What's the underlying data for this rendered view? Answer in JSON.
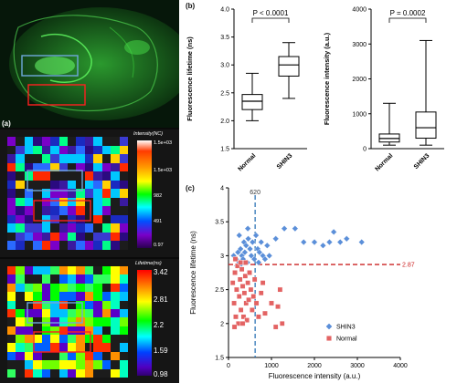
{
  "panels": {
    "a": {
      "letter": "(a)",
      "intensity_colorbar": {
        "title": "Intensity(NC)",
        "ticks": [
          "1.5e+03",
          "1.5e+03",
          "982",
          "491",
          "0.97"
        ]
      },
      "lifetime_colorbar": {
        "title": "Lifetime(ns)",
        "ticks": [
          "3.42",
          "2.81",
          "2.2",
          "1.59",
          "0.98"
        ]
      },
      "roi_colors": {
        "normal_box": "#6fa8dc",
        "tumor_box": "#ff2020"
      }
    },
    "b": {
      "letter": "(b)"
    },
    "c": {
      "letter": "(c)"
    }
  },
  "chart_data": [
    {
      "type": "boxplot",
      "ylabel": "Fluorescence lifetime (ns)",
      "categories": [
        "Normal",
        "SHIN3"
      ],
      "ylim": [
        1.5,
        4.0
      ],
      "yticks": [
        "1.5",
        "2.0",
        "2.5",
        "3.0",
        "3.5",
        "4.0"
      ],
      "boxes": [
        {
          "name": "Normal",
          "min": 2.0,
          "q1": 2.2,
          "median": 2.35,
          "q3": 2.47,
          "max": 2.85
        },
        {
          "name": "SHIN3",
          "min": 2.4,
          "q1": 2.8,
          "median": 3.0,
          "q3": 3.15,
          "max": 3.4
        }
      ],
      "annotation": "P < 0.0001"
    },
    {
      "type": "boxplot",
      "ylabel": "Fluorescence intensity (a.u.)",
      "categories": [
        "Normal",
        "SHIN3"
      ],
      "ylim": [
        0,
        4000
      ],
      "yticks": [
        "0",
        "1000",
        "2000",
        "3000",
        "4000"
      ],
      "boxes": [
        {
          "name": "Normal",
          "min": 100,
          "q1": 190,
          "median": 290,
          "q3": 420,
          "max": 1300
        },
        {
          "name": "SHIN3",
          "min": 100,
          "q1": 300,
          "median": 600,
          "q3": 1050,
          "max": 3100
        }
      ],
      "annotation": "P = 0.0002"
    },
    {
      "type": "scatter",
      "xlabel": "Fluorescence intensity (a.u.)",
      "ylabel": "Fluorescence lifetime (ns)",
      "xlim": [
        0,
        4000
      ],
      "ylim": [
        1.5,
        4.0
      ],
      "xticks": [
        "0",
        "1000",
        "2000",
        "3000",
        "4000"
      ],
      "yticks": [
        "1.5",
        "2",
        "2.5",
        "3",
        "3.5",
        "4"
      ],
      "vline": {
        "x": 620,
        "label": "620",
        "color": "#2e75b6"
      },
      "hline": {
        "y": 2.87,
        "label": "2.87",
        "color": "#cc2222"
      },
      "legend_position": "bottom-right",
      "series": [
        {
          "name": "SHIN3",
          "marker": "diamond",
          "color": "#5b8fd9",
          "points": [
            [
              120,
              3.0
            ],
            [
              180,
              2.95
            ],
            [
              220,
              3.05
            ],
            [
              250,
              2.9
            ],
            [
              280,
              3.1
            ],
            [
              310,
              3.0
            ],
            [
              340,
              2.95
            ],
            [
              360,
              3.2
            ],
            [
              380,
              3.05
            ],
            [
              410,
              3.15
            ],
            [
              440,
              2.9
            ],
            [
              460,
              3.25
            ],
            [
              500,
              3.1
            ],
            [
              530,
              3.0
            ],
            [
              560,
              3.2
            ],
            [
              600,
              2.95
            ],
            [
              640,
              3.3
            ],
            [
              680,
              3.1
            ],
            [
              720,
              3.05
            ],
            [
              760,
              3.2
            ],
            [
              800,
              3.0
            ],
            [
              850,
              2.95
            ],
            [
              900,
              3.15
            ],
            [
              950,
              3.0
            ],
            [
              1100,
              3.25
            ],
            [
              1300,
              3.4
            ],
            [
              1550,
              3.4
            ],
            [
              1750,
              3.2
            ],
            [
              2000,
              3.2
            ],
            [
              2200,
              3.15
            ],
            [
              2350,
              3.2
            ],
            [
              2450,
              3.35
            ],
            [
              2600,
              3.2
            ],
            [
              2750,
              3.25
            ],
            [
              3100,
              3.2
            ],
            [
              200,
              2.85
            ],
            [
              300,
              2.88
            ],
            [
              700,
              2.9
            ],
            [
              250,
              3.3
            ],
            [
              450,
              3.4
            ]
          ]
        },
        {
          "name": "Normal",
          "marker": "square",
          "color": "#e36363",
          "points": [
            [
              100,
              2.6
            ],
            [
              130,
              2.3
            ],
            [
              150,
              2.75
            ],
            [
              170,
              2.1
            ],
            [
              190,
              2.5
            ],
            [
              210,
              2.85
            ],
            [
              230,
              2.0
            ],
            [
              250,
              2.4
            ],
            [
              270,
              2.65
            ],
            [
              290,
              2.2
            ],
            [
              310,
              2.8
            ],
            [
              330,
              2.55
            ],
            [
              350,
              2.1
            ],
            [
              370,
              2.45
            ],
            [
              390,
              2.7
            ],
            [
              410,
              2.3
            ],
            [
              430,
              2.05
            ],
            [
              450,
              2.6
            ],
            [
              470,
              2.35
            ],
            [
              490,
              2.75
            ],
            [
              520,
              2.5
            ],
            [
              550,
              2.2
            ],
            [
              580,
              2.4
            ],
            [
              610,
              2.65
            ],
            [
              650,
              2.3
            ],
            [
              700,
              2.1
            ],
            [
              760,
              2.45
            ],
            [
              850,
              2.15
            ],
            [
              1000,
              2.3
            ],
            [
              1200,
              2.5
            ],
            [
              1250,
              2.0
            ],
            [
              1150,
              2.25
            ],
            [
              1100,
              1.95
            ],
            [
              160,
              2.95
            ],
            [
              280,
              2.9
            ],
            [
              400,
              2.9
            ],
            [
              140,
              1.95
            ],
            [
              330,
              2.0
            ],
            [
              800,
              2.6
            ]
          ]
        }
      ]
    }
  ]
}
